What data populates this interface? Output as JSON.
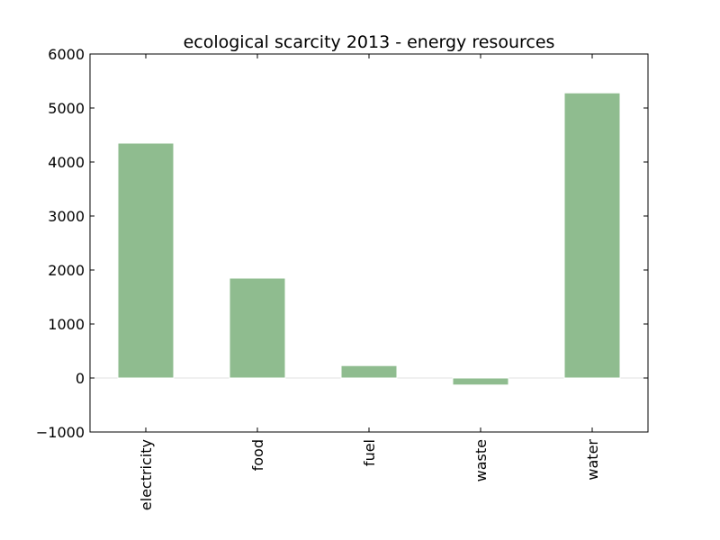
{
  "chart_data": {
    "type": "bar",
    "title": "ecological scarcity 2013 - energy resources",
    "xlabel": "",
    "ylabel": "",
    "categories": [
      "electricity",
      "food",
      "fuel",
      "waste",
      "water"
    ],
    "values": [
      4350,
      1850,
      230,
      -130,
      5280
    ],
    "ylim": [
      -1000,
      6000
    ],
    "yticks": [
      -1000,
      0,
      1000,
      2000,
      3000,
      4000,
      5000,
      6000
    ],
    "ytick_labels": [
      "−1000",
      "0",
      "1000",
      "2000",
      "3000",
      "4000",
      "5000",
      "6000"
    ],
    "bar_color": "#8fbc8f",
    "grid": false,
    "legend": false
  }
}
